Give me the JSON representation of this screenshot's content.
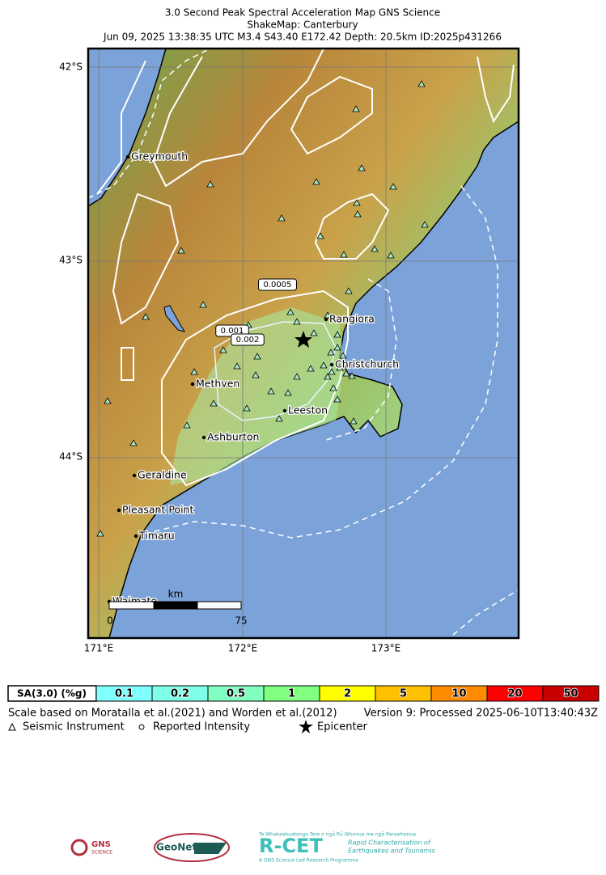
{
  "header": {
    "lines": [
      "3.0 Second Peak Spectral Acceleration Map GNS Science",
      "ShakeMap: Canterbury",
      "Jun 09, 2025 13:38:35 UTC M3.4 S43.40 E172.42 Depth: 20.5km ID:2025p431266"
    ]
  },
  "map": {
    "lat_labels": [
      "42°S",
      "43°S",
      "44°S"
    ],
    "lon_labels": [
      "171°E",
      "172°E",
      "173°E"
    ],
    "places": [
      "Greymouth",
      "Rangiora",
      "Christchurch",
      "Methven",
      "Leeston",
      "Ashburton",
      "Geraldine",
      "Pleasant Point",
      "Timaru",
      "Waimate"
    ],
    "contour_labels": [
      "0.0005",
      "0.001",
      "0.002"
    ],
    "scale_bar": {
      "unit": "km",
      "start": "0",
      "end": "75"
    }
  },
  "legend": {
    "title": "SA(3.0) (%g)",
    "levels": [
      0.1,
      0.2,
      0.5,
      1,
      2,
      5,
      10,
      20,
      50
    ],
    "colors": [
      "#80ffff",
      "#80ffe8",
      "#80ffc0",
      "#80ff80",
      "#ffff00",
      "#ffc000",
      "#ff8c00",
      "#ff0000",
      "#c80000"
    ]
  },
  "footer": {
    "scale_note": "Scale based on Moratalla et al.(2021) and Worden et al.(2012)",
    "version": "Version 9: Processed 2025-06-10T13:40:43Z",
    "symbols": [
      "Seismic Instrument",
      "Reported Intensity",
      "Epicenter"
    ]
  },
  "logos": {
    "gns": "GNS",
    "gns_sub": "SCIENCE",
    "geonet": "GeoNet",
    "rcet_tagline": "Te Whakaahuatanga Tere o ngā Rū Whenua me ngā Parawhenua",
    "rcet": "R-CET",
    "rcet_desc1": "Rapid Characterisation of",
    "rcet_desc2": "Earthquakes and Tsunamis",
    "rcet_sub": "A GNS Science Led Research Programme"
  }
}
